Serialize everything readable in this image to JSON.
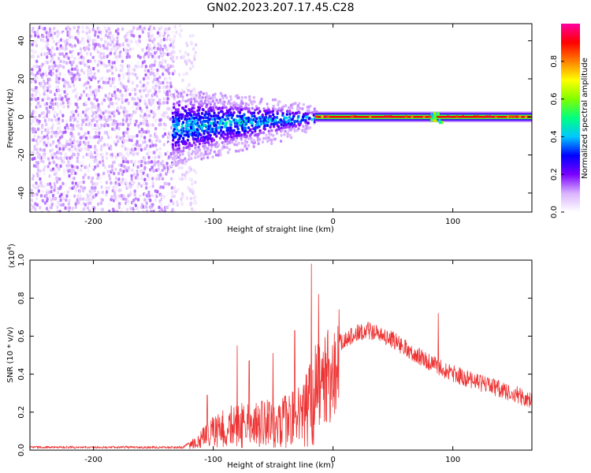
{
  "title": "GN02.2023.207.17.45.C28",
  "chart_data": [
    {
      "type": "heatmap",
      "xlabel": "Height of straight line (km)",
      "ylabel": "Frequency (Hz)",
      "xlim": [
        -253,
        166
      ],
      "ylim": [
        -50,
        49
      ],
      "x_ticks": [
        -200,
        -100,
        0,
        100
      ],
      "x_tick_labels": [
        "-200",
        "-100",
        "0",
        "100"
      ],
      "y_ticks": [
        -40,
        -20,
        0,
        20,
        40
      ],
      "y_tick_labels": [
        "-40",
        "-20",
        "0",
        "20",
        "40"
      ],
      "colorbar": {
        "label": "Normalized spectral amplitude",
        "range": [
          0,
          1
        ],
        "ticks": [
          0.0,
          0.2,
          0.4,
          0.6,
          0.8
        ],
        "tick_labels": [
          "0.0",
          "0.2",
          "0.4",
          "0.6",
          "0.8"
        ],
        "colormap": [
          "#ffffff",
          "#d9b3ff",
          "#7a00ff",
          "#0000ff",
          "#00c8ff",
          "#00ff80",
          "#80ff00",
          "#ffff00",
          "#ff8000",
          "#ff0000",
          "#ff00a0"
        ]
      },
      "regions": [
        {
          "x_range": [
            -253,
            -135
          ],
          "freq_range": [
            -50,
            49
          ],
          "amplitude": [
            0.0,
            0.15
          ],
          "note": "broadband low-amplitude noise"
        },
        {
          "x_range": [
            -135,
            -15
          ],
          "freq_range": [
            -20,
            10
          ],
          "center_freq_start": -5,
          "center_freq_end": 0,
          "amplitude": [
            0.1,
            0.45
          ]
        },
        {
          "x_range": [
            -15,
            166
          ],
          "freq_range": [
            -3,
            3
          ],
          "center_freq": 0,
          "amplitude": [
            0.3,
            0.95
          ]
        }
      ]
    },
    {
      "type": "line",
      "xlabel": "Height of straight line (km)",
      "ylabel": "SNR (10 * v/v)",
      "y_multiplier_label": "(x10",
      "y_multiplier_exp": "4",
      "y_multiplier_close": ")",
      "xlim": [
        -253,
        166
      ],
      "ylim": [
        0,
        1.0
      ],
      "x_ticks": [
        -200,
        -100,
        0,
        100
      ],
      "x_tick_labels": [
        "-200",
        "-100",
        "0",
        "100"
      ],
      "y_ticks": [
        0.0,
        0.2,
        0.4,
        0.6,
        0.8,
        1.0
      ],
      "y_tick_labels": [
        "0.0",
        "0.2",
        "0.4",
        "0.6",
        "0.8",
        "1.0"
      ],
      "series": [
        {
          "color": "#ee3333",
          "envelope_x": [
            -253,
            -200,
            -150,
            -125,
            -115,
            -100,
            -80,
            -60,
            -40,
            -25,
            -18,
            -10,
            0,
            10,
            20,
            30,
            50,
            70,
            90,
            110,
            130,
            150,
            166
          ],
          "envelope_y": [
            0.015,
            0.015,
            0.015,
            0.015,
            0.06,
            0.16,
            0.22,
            0.23,
            0.25,
            0.3,
            0.45,
            0.52,
            0.55,
            0.58,
            0.62,
            0.63,
            0.58,
            0.5,
            0.43,
            0.38,
            0.34,
            0.3,
            0.26
          ],
          "peaks": [
            {
              "x": -105,
              "y": 0.29
            },
            {
              "x": -80,
              "y": 0.55
            },
            {
              "x": -70,
              "y": 0.47
            },
            {
              "x": -50,
              "y": 0.51
            },
            {
              "x": -32,
              "y": 0.63
            },
            {
              "x": -18,
              "y": 0.98
            },
            {
              "x": -12,
              "y": 0.82
            },
            {
              "x": 5,
              "y": 0.74
            },
            {
              "x": 88,
              "y": 0.72
            }
          ]
        }
      ]
    }
  ]
}
